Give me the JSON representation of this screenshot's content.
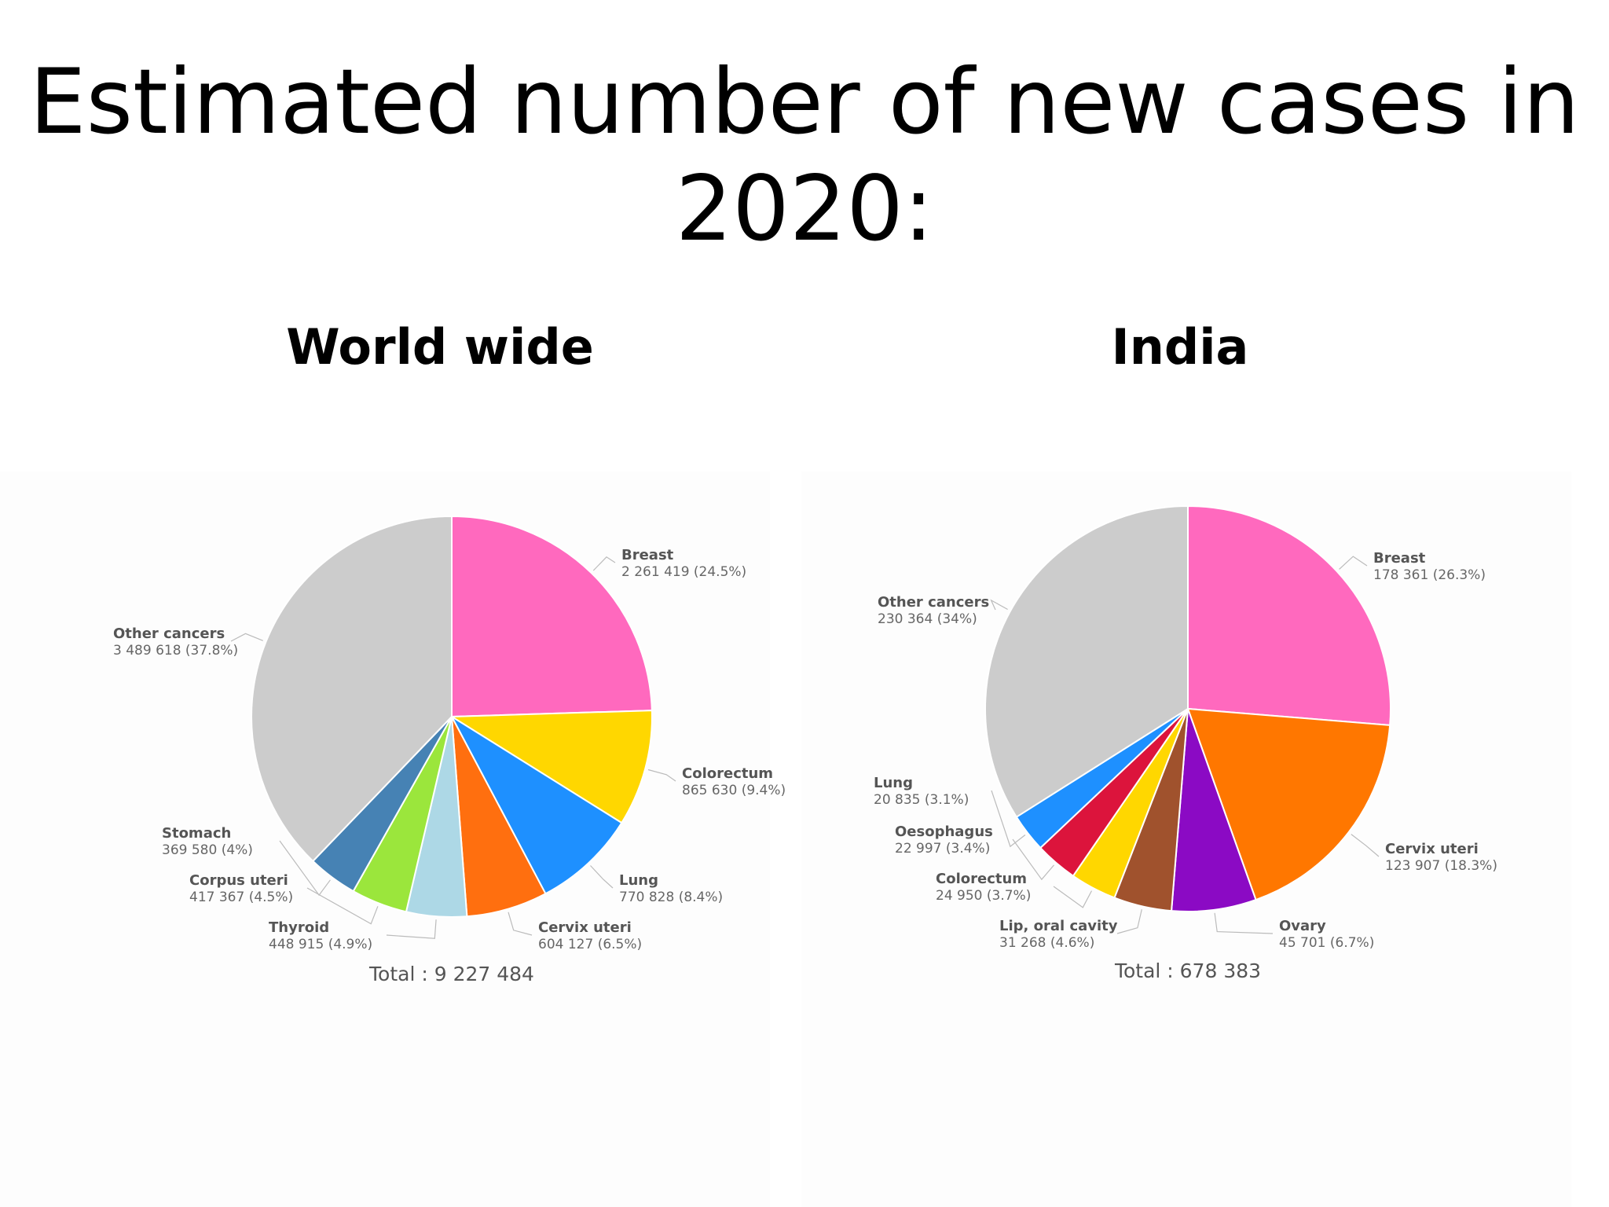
{
  "title": "Estimated number of new cases in 2020:",
  "chart_data": [
    {
      "type": "pie",
      "title": "World wide",
      "total_label": "Total : 9 227 484",
      "slices": [
        {
          "label": "Breast",
          "value": 2261419,
          "value_text": "2 261 419 (24.5%)",
          "color": "#FF69BE"
        },
        {
          "label": "Colorectum",
          "value": 865630,
          "value_text": "865 630 (9.4%)",
          "color": "#FFD700"
        },
        {
          "label": "Lung",
          "value": 770828,
          "value_text": "770 828 (8.4%)",
          "color": "#1E90FF"
        },
        {
          "label": "Cervix uteri",
          "value": 604127,
          "value_text": "604 127 (6.5%)",
          "color": "#FF6F0F"
        },
        {
          "label": "Thyroid",
          "value": 448915,
          "value_text": "448 915 (4.9%)",
          "color": "#ADD8E6"
        },
        {
          "label": "Corpus uteri",
          "value": 417367,
          "value_text": "417 367 (4.5%)",
          "color": "#9BE63C"
        },
        {
          "label": "Stomach",
          "value": 369580,
          "value_text": "369 580 (4%)",
          "color": "#4682B4"
        },
        {
          "label": "Other cancers",
          "value": 3489618,
          "value_text": "3 489 618 (37.8%)",
          "color": "#CCCCCC"
        }
      ]
    },
    {
      "type": "pie",
      "title": "India",
      "total_label": "Total : 678 383",
      "slices": [
        {
          "label": "Breast",
          "value": 178361,
          "value_text": "178 361 (26.3%)",
          "color": "#FF69BE"
        },
        {
          "label": "Cervix uteri",
          "value": 123907,
          "value_text": "123 907 (18.3%)",
          "color": "#FF7700"
        },
        {
          "label": "Ovary",
          "value": 45701,
          "value_text": "45 701 (6.7%)",
          "color": "#8B0AC4"
        },
        {
          "label": "Lip, oral cavity",
          "value": 31268,
          "value_text": "31 268 (4.6%)",
          "color": "#A0522D"
        },
        {
          "label": "Colorectum",
          "value": 24950,
          "value_text": "24 950 (3.7%)",
          "color": "#FFD700"
        },
        {
          "label": "Oesophagus",
          "value": 22997,
          "value_text": "22 997 (3.4%)",
          "color": "#DC143C"
        },
        {
          "label": "Lung",
          "value": 20835,
          "value_text": "20 835 (3.1%)",
          "color": "#1E90FF"
        },
        {
          "label": "Other cancers",
          "value": 230364,
          "value_text": "230 364 (34%)",
          "color": "#CCCCCC"
        }
      ]
    }
  ]
}
